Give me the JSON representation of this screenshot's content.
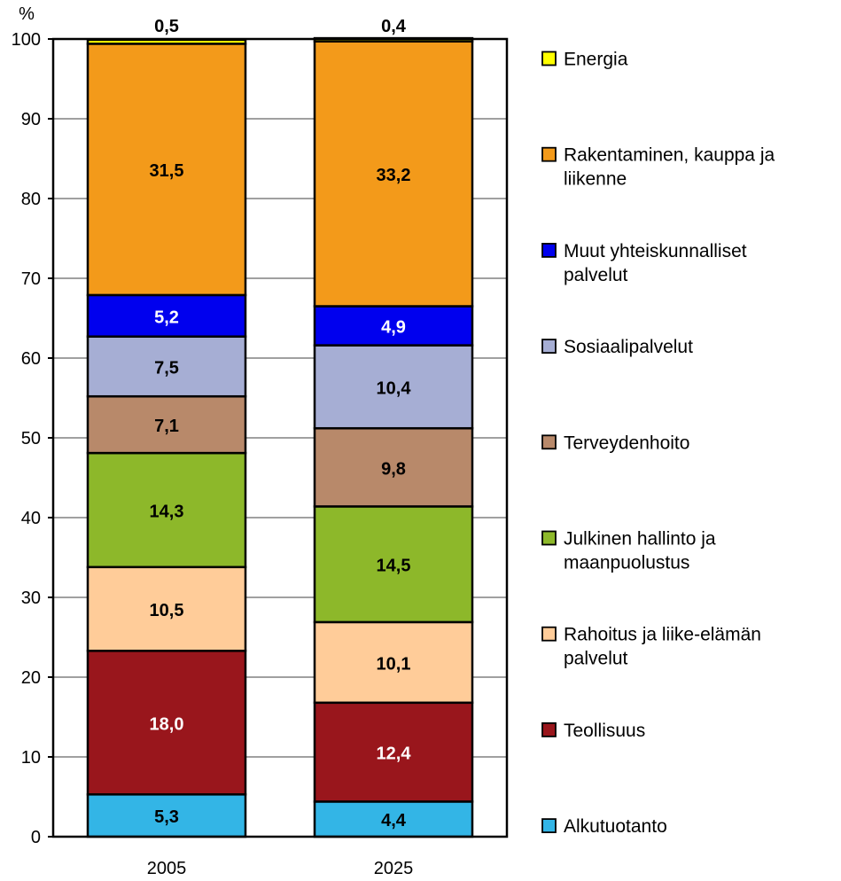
{
  "chart_data": {
    "type": "bar",
    "stacked": true,
    "y_unit_label": "%",
    "ylim": [
      0,
      100
    ],
    "y_ticks": [
      0,
      10,
      20,
      30,
      40,
      50,
      60,
      70,
      80,
      90,
      100
    ],
    "grid": true,
    "legend_position": "right",
    "categories": [
      "2005",
      "2025"
    ],
    "series": [
      {
        "name": "Alkutuotanto",
        "color": "#33b5e6",
        "label_color": "#000000",
        "values": [
          5.3,
          4.4
        ],
        "labels": [
          "5,3",
          "4,4"
        ]
      },
      {
        "name": "Teollisuus",
        "color": "#99161c",
        "label_color": "#ffffff",
        "values": [
          18.0,
          12.4
        ],
        "labels": [
          "18,0",
          "12,4"
        ]
      },
      {
        "name": "Rahoitus ja liike-elämän palvelut",
        "color": "#ffcc99",
        "label_color": "#000000",
        "values": [
          10.5,
          10.1
        ],
        "labels": [
          "10,5",
          "10,1"
        ]
      },
      {
        "name": "Julkinen hallinto ja maanpuolustus",
        "color": "#8db82a",
        "label_color": "#000000",
        "values": [
          14.3,
          14.5
        ],
        "labels": [
          "14,3",
          "14,5"
        ]
      },
      {
        "name": "Terveydenhoito",
        "color": "#b8896a",
        "label_color": "#000000",
        "values": [
          7.1,
          9.8
        ],
        "labels": [
          "7,1",
          "9,8"
        ]
      },
      {
        "name": "Sosiaalipalvelut",
        "color": "#a6aed4",
        "label_color": "#000000",
        "values": [
          7.5,
          10.4
        ],
        "labels": [
          "7,5",
          "10,4"
        ]
      },
      {
        "name": "Muut yhteiskunnalliset palvelut",
        "color": "#0000ee",
        "label_color": "#ffffff",
        "values": [
          5.2,
          4.9
        ],
        "labels": [
          "5,2",
          "4,9"
        ]
      },
      {
        "name": "Rakentaminen, kauppa ja liikenne",
        "color": "#f39a1a",
        "label_color": "#000000",
        "values": [
          31.5,
          33.2
        ],
        "labels": [
          "31,5",
          "33,2"
        ]
      },
      {
        "name": "Energia",
        "color": "#ffff00",
        "label_color": "#000000",
        "values": [
          0.5,
          0.4
        ],
        "labels": [
          "0,5",
          "0,4"
        ]
      }
    ],
    "legend": [
      {
        "lines": [
          "Energia"
        ],
        "color": "#ffff00"
      },
      {
        "lines": [
          "Rakentaminen, kauppa ja",
          "liikenne"
        ],
        "color": "#f39a1a"
      },
      {
        "lines": [
          "Muut yhteiskunnalliset",
          "palvelut"
        ],
        "color": "#0000ee"
      },
      {
        "lines": [
          "Sosiaalipalvelut"
        ],
        "color": "#a6aed4"
      },
      {
        "lines": [
          "Terveydenhoito"
        ],
        "color": "#b8896a"
      },
      {
        "lines": [
          "Julkinen hallinto ja",
          "maanpuolustus"
        ],
        "color": "#8db82a"
      },
      {
        "lines": [
          "Rahoitus ja liike-elämän",
          "palvelut"
        ],
        "color": "#ffcc99"
      },
      {
        "lines": [
          "Teollisuus"
        ],
        "color": "#99161c"
      },
      {
        "lines": [
          "Alkutuotanto"
        ],
        "color": "#33b5e6"
      }
    ]
  }
}
